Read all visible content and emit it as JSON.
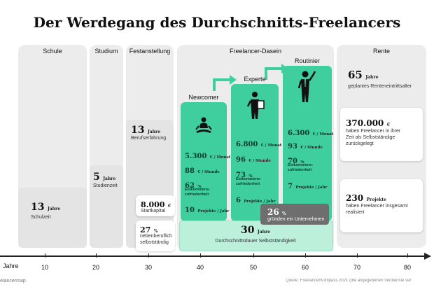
{
  "title": "Der Werdegang des Durchschnitts-Freelancers",
  "columns": {
    "schule": "Schule",
    "studium": "Studium",
    "festanstellung": "Festanstellung",
    "freelancer": "Freelancer-Dasein",
    "rente": "Rente"
  },
  "cards": {
    "schule": {
      "value": "13",
      "unit": "Jahre",
      "label": "Schulzeit"
    },
    "studium": {
      "value": "5",
      "unit": "Jahre",
      "label": "Studienzeit"
    },
    "beruf": {
      "value": "13",
      "unit": "Jahre",
      "label": "Berufserfahrung"
    },
    "startkapital": {
      "value": "8.000",
      "unit": "€",
      "label": "Startkapital"
    },
    "nebenberuf": {
      "value": "27",
      "unit": "%",
      "label1": "nebenberuflich",
      "label2": "selbstständig"
    },
    "gruenden": {
      "value": "26",
      "unit": "%",
      "label": "gründen ein Unternehmen"
    },
    "dauer": {
      "value": "30",
      "unit": "Jahre",
      "label": "Durchschnittsdauer Selbstständigkeit"
    }
  },
  "stages": [
    {
      "name": "Newcomer",
      "monat": "5.300",
      "monat_unit": "€ / Monat",
      "stunde": "88",
      "stunde_unit": "€ / Stunde",
      "zufrieden": "62",
      "zufrieden_unit": "%",
      "zufrieden_label1": "Einkommens-",
      "zufrieden_label2": "zufriedenheit",
      "projekte": "10",
      "projekte_unit": "Projekte / Jahr"
    },
    {
      "name": "Experte",
      "monat": "6.800",
      "monat_unit": "€ / Monat",
      "stunde": "96",
      "stunde_unit": "€ / Stunde",
      "zufrieden": "73",
      "zufrieden_unit": "%",
      "zufrieden_label1": "Einkommens-",
      "zufrieden_label2": "zufriedenheit",
      "projekte": "6",
      "projekte_unit": "Projekte / Jahr"
    },
    {
      "name": "Routinier",
      "monat": "6.300",
      "monat_unit": "€ / Monat",
      "stunde": "93",
      "stunde_unit": "€ / Stunde",
      "zufrieden": "70",
      "zufrieden_unit": "%",
      "zufrieden_label1": "Einkommens-",
      "zufrieden_label2": "zufriedenheit",
      "projekte": "7",
      "projekte_unit": "Projekte / Jahr"
    }
  ],
  "rente": {
    "alter": {
      "value": "65",
      "unit": "Jahre",
      "label": "geplantes Renteneintrittsalter"
    },
    "verdienst": {
      "value": "370.000",
      "unit": "€",
      "label1": "haben Freelancer in ihrer",
      "label2": "Zeit als Selbstständige",
      "label3": "zurückgelegt"
    },
    "projekte": {
      "value": "230",
      "unit": "Projekte",
      "label1": "haben Freelancer insgesamt",
      "label2": "realisiert"
    }
  },
  "axis": {
    "label": "Jahre",
    "ticks": [
      "10",
      "20",
      "30",
      "40",
      "50",
      "60",
      "70",
      "80"
    ]
  },
  "footer": {
    "logo": "freelancermap",
    "source": "Quelle: FreelancerKompass 2021 (die angegebenen Verdienste ver"
  },
  "colors": {
    "green": "#3fcf9f",
    "panel": "#ececec",
    "darkgray": "#6e6e6e"
  }
}
